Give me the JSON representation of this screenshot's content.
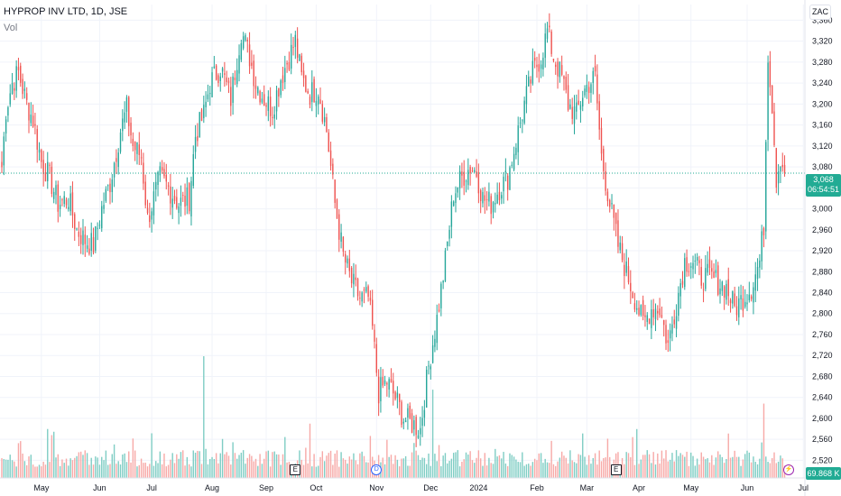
{
  "legend": {
    "title": "HYPROP INV LTD, 1D, JSE",
    "subtitle": "Vol"
  },
  "currency": "ZAC",
  "last_price": {
    "value": "3,068",
    "countdown": "06:54:51"
  },
  "volume_last": "69.868 K",
  "events": [
    {
      "type": "earnings",
      "label": "E",
      "date_index": 141
    },
    {
      "type": "dividend",
      "label": "D",
      "date_index": 180
    },
    {
      "type": "earnings",
      "label": "E",
      "date_index": 295
    },
    {
      "type": "split",
      "label": "⚡",
      "date_index": 378
    }
  ],
  "colors": {
    "up": "#26a69a",
    "down": "#ef5350",
    "up_vol": "#7fcdc4",
    "down_vol": "#f7a9a7",
    "grid": "#f0f3fa",
    "axis_text": "#131722",
    "last_line": "#22ab94"
  },
  "chart_data": {
    "type": "candlestick",
    "title": "HYPROP INV LTD, 1D, JSE",
    "y_axis": {
      "ticks": [
        2520,
        2560,
        2600,
        2640,
        2680,
        2720,
        2760,
        2800,
        2840,
        2880,
        2920,
        2960,
        3000,
        3040,
        3080,
        3120,
        3160,
        3200,
        3240,
        3280,
        3320,
        3360
      ],
      "range": [
        2488,
        3390
      ],
      "unit": "ZAC"
    },
    "x_axis": {
      "labels": [
        "May",
        "Jun",
        "Jul",
        "Aug",
        "Sep",
        "Oct",
        "Nov",
        "Dec",
        "2024",
        "Feb",
        "Mar",
        "Apr",
        "May",
        "Jun",
        "Jul"
      ],
      "label_positions_index": [
        19,
        47,
        72,
        101,
        127,
        151,
        180,
        206,
        229,
        257,
        281,
        306,
        331,
        358,
        385
      ],
      "count_days": 384
    },
    "series_anchors": [
      [
        0,
        3080
      ],
      [
        2,
        3190
      ],
      [
        5,
        3240
      ],
      [
        8,
        3260
      ],
      [
        12,
        3200
      ],
      [
        15,
        3170
      ],
      [
        19,
        3090
      ],
      [
        23,
        3060
      ],
      [
        27,
        3010
      ],
      [
        32,
        3020
      ],
      [
        36,
        2960
      ],
      [
        40,
        2940
      ],
      [
        44,
        2930
      ],
      [
        48,
        3000
      ],
      [
        52,
        3050
      ],
      [
        57,
        3150
      ],
      [
        60,
        3190
      ],
      [
        63,
        3120
      ],
      [
        67,
        3100
      ],
      [
        70,
        2980
      ],
      [
        73,
        3020
      ],
      [
        76,
        3060
      ],
      [
        80,
        3040
      ],
      [
        85,
        3010
      ],
      [
        90,
        3020
      ],
      [
        93,
        3140
      ],
      [
        97,
        3180
      ],
      [
        100,
        3240
      ],
      [
        105,
        3270
      ],
      [
        110,
        3210
      ],
      [
        115,
        3340
      ],
      [
        119,
        3290
      ],
      [
        122,
        3240
      ],
      [
        126,
        3210
      ],
      [
        130,
        3190
      ],
      [
        134,
        3250
      ],
      [
        138,
        3290
      ],
      [
        141,
        3320
      ],
      [
        144,
        3250
      ],
      [
        148,
        3220
      ],
      [
        152,
        3230
      ],
      [
        156,
        3150
      ],
      [
        160,
        3010
      ],
      [
        164,
        2910
      ],
      [
        168,
        2860
      ],
      [
        172,
        2830
      ],
      [
        176,
        2830
      ],
      [
        178,
        2770
      ],
      [
        181,
        2650
      ],
      [
        185,
        2670
      ],
      [
        189,
        2640
      ],
      [
        193,
        2600
      ],
      [
        197,
        2590
      ],
      [
        201,
        2580
      ],
      [
        205,
        2700
      ],
      [
        209,
        2790
      ],
      [
        213,
        2900
      ],
      [
        217,
        3030
      ],
      [
        221,
        3060
      ],
      [
        225,
        3080
      ],
      [
        228,
        3070
      ],
      [
        231,
        3020
      ],
      [
        235,
        3010
      ],
      [
        239,
        3040
      ],
      [
        243,
        3060
      ],
      [
        247,
        3130
      ],
      [
        251,
        3200
      ],
      [
        255,
        3260
      ],
      [
        259,
        3290
      ],
      [
        262,
        3340
      ],
      [
        265,
        3290
      ],
      [
        269,
        3250
      ],
      [
        272,
        3200
      ],
      [
        276,
        3180
      ],
      [
        279,
        3220
      ],
      [
        282,
        3240
      ],
      [
        285,
        3250
      ],
      [
        288,
        3100
      ],
      [
        292,
        3010
      ],
      [
        296,
        2930
      ],
      [
        300,
        2880
      ],
      [
        304,
        2830
      ],
      [
        308,
        2780
      ],
      [
        312,
        2810
      ],
      [
        316,
        2810
      ],
      [
        320,
        2740
      ],
      [
        324,
        2820
      ],
      [
        328,
        2900
      ],
      [
        332,
        2900
      ],
      [
        336,
        2870
      ],
      [
        340,
        2870
      ],
      [
        344,
        2860
      ],
      [
        348,
        2850
      ],
      [
        352,
        2810
      ],
      [
        356,
        2830
      ],
      [
        360,
        2850
      ],
      [
        364,
        2900
      ],
      [
        366,
        2970
      ],
      [
        368,
        3300
      ],
      [
        370,
        3200
      ],
      [
        372,
        3060
      ],
      [
        374,
        3100
      ],
      [
        376,
        3068
      ]
    ],
    "volume_range": [
      0,
      131000
    ],
    "last_value": 3068
  }
}
